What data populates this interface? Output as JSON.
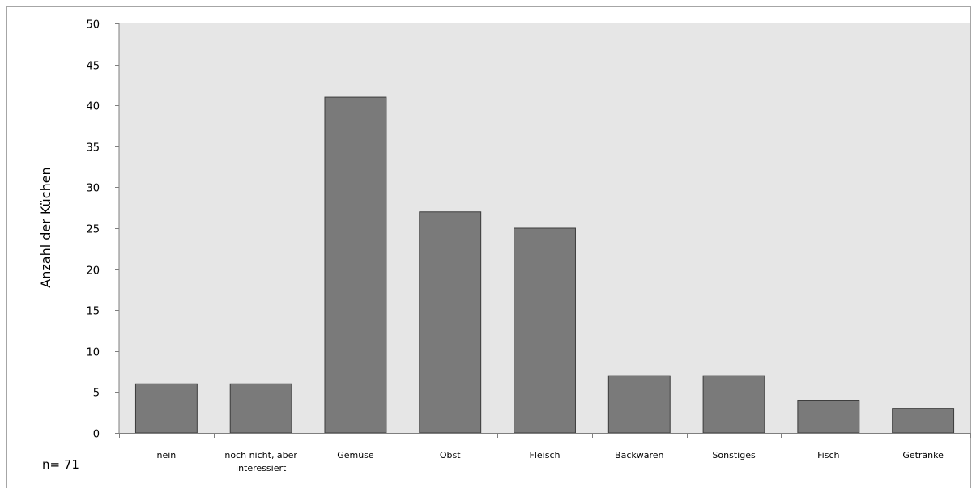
{
  "chart_data": {
    "type": "bar",
    "title": "",
    "xlabel": "",
    "ylabel": "Anzahl der Küchen",
    "categories": [
      "nein",
      "noch nicht, aber interessiert",
      "Gemüse",
      "Obst",
      "Fleisch",
      "Backwaren",
      "Sonstiges",
      "Fisch",
      "Getränke"
    ],
    "values": [
      6,
      6,
      41,
      27,
      25,
      7,
      7,
      4,
      3
    ],
    "ylim": [
      0,
      50
    ],
    "yticks": [
      0,
      5,
      10,
      15,
      20,
      25,
      30,
      35,
      40,
      45,
      50
    ],
    "grid": false,
    "legend": "none",
    "annotation": "n= 71"
  },
  "colors": {
    "plot_background": "#e6e6e6",
    "bar_fill": "#7a7a7a",
    "bar_stroke": "#3c3c3c",
    "axis": "#7f7f7f",
    "frame": "#a6a6a6"
  }
}
